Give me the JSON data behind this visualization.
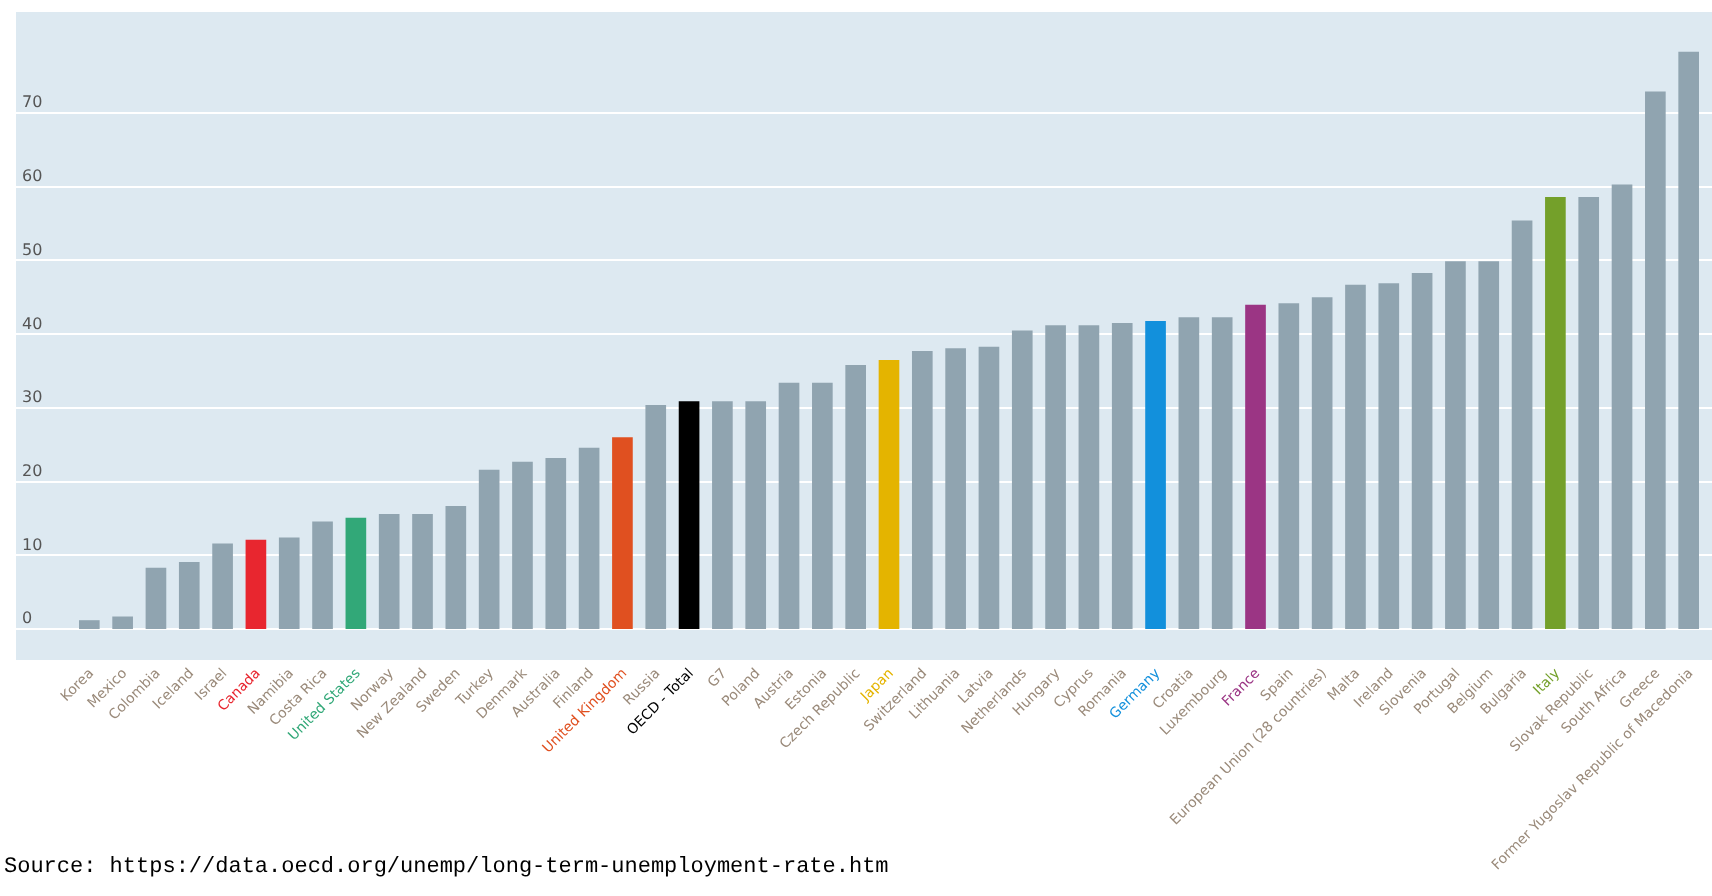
{
  "chart_data": {
    "type": "bar",
    "categories": [
      "Korea",
      "Mexico",
      "Colombia",
      "Iceland",
      "Israel",
      "Canada",
      "Namibia",
      "Costa Rica",
      "United States",
      "Norway",
      "New Zealand",
      "Sweden",
      "Turkey",
      "Denmark",
      "Australia",
      "Finland",
      "United Kingdom",
      "Russia",
      "OECD - Total",
      "G7",
      "Poland",
      "Austria",
      "Estonia",
      "Czech Republic",
      "Japan",
      "Switzerland",
      "Lithuania",
      "Latvia",
      "Netherlands",
      "Hungary",
      "Cyprus",
      "Romania",
      "Germany",
      "Croatia",
      "Luxembourg",
      "France",
      "Spain",
      "European Union (28 countries)",
      "Malta",
      "Ireland",
      "Slovenia",
      "Portugal",
      "Belgium",
      "Bulgaria",
      "Italy",
      "Slovak Republic",
      "South Africa",
      "Greece",
      "Former Yugoslav Republic of Macedonia"
    ],
    "values": [
      1.2,
      1.7,
      8.3,
      9.1,
      11.6,
      12.1,
      12.4,
      14.6,
      15.1,
      15.6,
      15.6,
      16.7,
      21.6,
      22.7,
      23.2,
      24.6,
      26.0,
      30.4,
      30.9,
      30.9,
      30.9,
      33.4,
      33.4,
      35.8,
      36.5,
      37.7,
      38.1,
      38.3,
      40.5,
      41.2,
      41.2,
      41.5,
      41.8,
      42.3,
      42.3,
      44.0,
      44.2,
      45.0,
      46.7,
      46.9,
      48.3,
      49.9,
      49.9,
      55.4,
      58.6,
      58.6,
      60.3,
      72.9,
      78.3
    ],
    "colors": [
      "#90a4b0",
      "#90a4b0",
      "#90a4b0",
      "#90a4b0",
      "#90a4b0",
      "#e8262f",
      "#90a4b0",
      "#90a4b0",
      "#32a878",
      "#90a4b0",
      "#90a4b0",
      "#90a4b0",
      "#90a4b0",
      "#90a4b0",
      "#90a4b0",
      "#90a4b0",
      "#e05020",
      "#90a4b0",
      "#000000",
      "#90a4b0",
      "#90a4b0",
      "#90a4b0",
      "#90a4b0",
      "#90a4b0",
      "#e4b400",
      "#90a4b0",
      "#90a4b0",
      "#90a4b0",
      "#90a4b0",
      "#90a4b0",
      "#90a4b0",
      "#90a4b0",
      "#1290dc",
      "#90a4b0",
      "#90a4b0",
      "#9b3584",
      "#90a4b0",
      "#90a4b0",
      "#90a4b0",
      "#90a4b0",
      "#90a4b0",
      "#90a4b0",
      "#90a4b0",
      "#90a4b0",
      "#74a02a",
      "#90a4b0",
      "#90a4b0",
      "#90a4b0",
      "#90a4b0"
    ],
    "ylim": [
      -4.2,
      83.7
    ],
    "yticks": [
      0,
      10,
      20,
      30,
      40,
      50,
      60,
      70
    ],
    "grid": "y",
    "annotations": [
      "Source: https://data.oecd.org/unemp/long-term-unemployment-rate.htm"
    ]
  }
}
